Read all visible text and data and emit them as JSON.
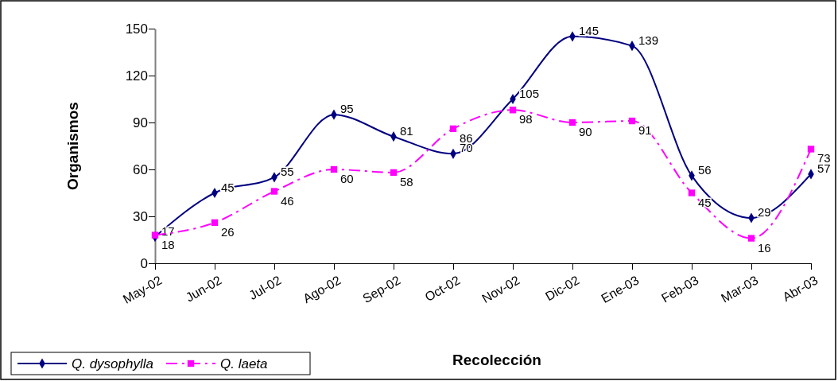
{
  "chart_data": {
    "type": "line",
    "xlabel": "Recolección",
    "ylabel": "Organismos",
    "categories": [
      "May-02",
      "Jun-02",
      "Jul-02",
      "Ago-02",
      "Sep-02",
      "Oct-02",
      "Nov-02",
      "Dic-02",
      "Ene-03",
      "Feb-03",
      "Mar-03",
      "Abr-03"
    ],
    "series": [
      {
        "name": "Q. dysophylla",
        "color": "#000080",
        "marker": "diamond",
        "line_style": "solid",
        "values": [
          17,
          45,
          55,
          95,
          81,
          70,
          105,
          145,
          139,
          56,
          29,
          57
        ]
      },
      {
        "name": "Q. laeta",
        "color": "#ff00ff",
        "marker": "square",
        "line_style": "dashed",
        "values": [
          18,
          26,
          46,
          60,
          58,
          86,
          98,
          90,
          91,
          45,
          16,
          73
        ]
      }
    ],
    "ylim": [
      0,
      150
    ],
    "yticks": [
      0,
      30,
      60,
      90,
      120,
      150
    ],
    "data_labels": true,
    "grid": false,
    "legend": "bottom left"
  }
}
